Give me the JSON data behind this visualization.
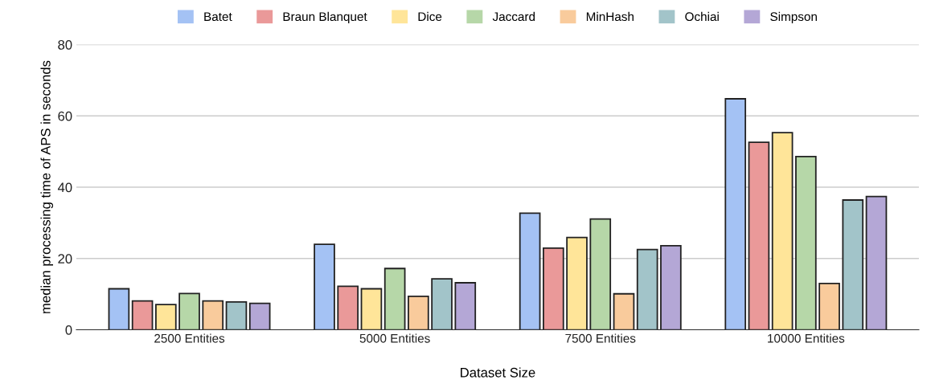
{
  "chart_data": {
    "type": "bar",
    "xlabel": "Dataset Size",
    "ylabel": "median processing time of APS in seconds",
    "categories": [
      "2500 Entities",
      "5000 Entities",
      "7500 Entities",
      "10000 Entities"
    ],
    "series": [
      {
        "name": "Batet",
        "color": "#a4c2f4",
        "values": [
          11.5,
          24.0,
          32.7,
          64.8
        ]
      },
      {
        "name": "Braun Blanquet",
        "color": "#ea9999",
        "values": [
          8.1,
          12.2,
          22.9,
          52.6
        ]
      },
      {
        "name": "Dice",
        "color": "#ffe599",
        "values": [
          7.1,
          11.5,
          25.9,
          55.3
        ]
      },
      {
        "name": "Jaccard",
        "color": "#b6d7a8",
        "values": [
          10.2,
          17.2,
          31.1,
          48.6
        ]
      },
      {
        "name": "MinHash",
        "color": "#f9cb9c",
        "values": [
          8.1,
          9.4,
          10.1,
          13.0
        ]
      },
      {
        "name": "Ochiai",
        "color": "#a2c4c9",
        "values": [
          7.8,
          14.3,
          22.5,
          36.4
        ]
      },
      {
        "name": "Simpson",
        "color": "#b4a7d6",
        "values": [
          7.4,
          13.2,
          23.6,
          37.4
        ]
      }
    ],
    "ylim": [
      0,
      80
    ],
    "yticks": [
      0,
      20,
      40,
      60,
      80
    ],
    "grid": "y",
    "legend": "top"
  }
}
